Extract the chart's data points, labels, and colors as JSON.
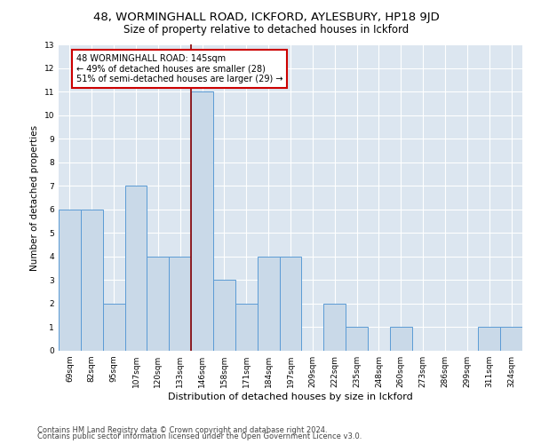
{
  "title": "48, WORMINGHALL ROAD, ICKFORD, AYLESBURY, HP18 9JD",
  "subtitle": "Size of property relative to detached houses in Ickford",
  "xlabel": "Distribution of detached houses by size in Ickford",
  "ylabel": "Number of detached properties",
  "categories": [
    "69sqm",
    "82sqm",
    "95sqm",
    "107sqm",
    "120sqm",
    "133sqm",
    "146sqm",
    "158sqm",
    "171sqm",
    "184sqm",
    "197sqm",
    "209sqm",
    "222sqm",
    "235sqm",
    "248sqm",
    "260sqm",
    "273sqm",
    "286sqm",
    "299sqm",
    "311sqm",
    "324sqm"
  ],
  "values": [
    6,
    6,
    2,
    7,
    4,
    4,
    11,
    3,
    2,
    4,
    4,
    0,
    2,
    1,
    0,
    1,
    0,
    0,
    0,
    1,
    1
  ],
  "bar_color": "#c9d9e8",
  "bar_edge_color": "#5b9bd5",
  "subject_line_index": 6,
  "subject_line_color": "#8b0000",
  "annotation_text": "48 WORMINGHALL ROAD: 145sqm\n← 49% of detached houses are smaller (28)\n51% of semi-detached houses are larger (29) →",
  "annotation_box_color": "#ffffff",
  "annotation_box_edge_color": "#cc0000",
  "background_color": "#dce6f0",
  "ylim": [
    0,
    13
  ],
  "yticks": [
    0,
    1,
    2,
    3,
    4,
    5,
    6,
    7,
    8,
    9,
    10,
    11,
    12,
    13
  ],
  "footer_line1": "Contains HM Land Registry data © Crown copyright and database right 2024.",
  "footer_line2": "Contains public sector information licensed under the Open Government Licence v3.0.",
  "title_fontsize": 9.5,
  "subtitle_fontsize": 8.5,
  "xlabel_fontsize": 8,
  "ylabel_fontsize": 7.5,
  "tick_fontsize": 6.5,
  "annotation_fontsize": 7,
  "footer_fontsize": 6
}
